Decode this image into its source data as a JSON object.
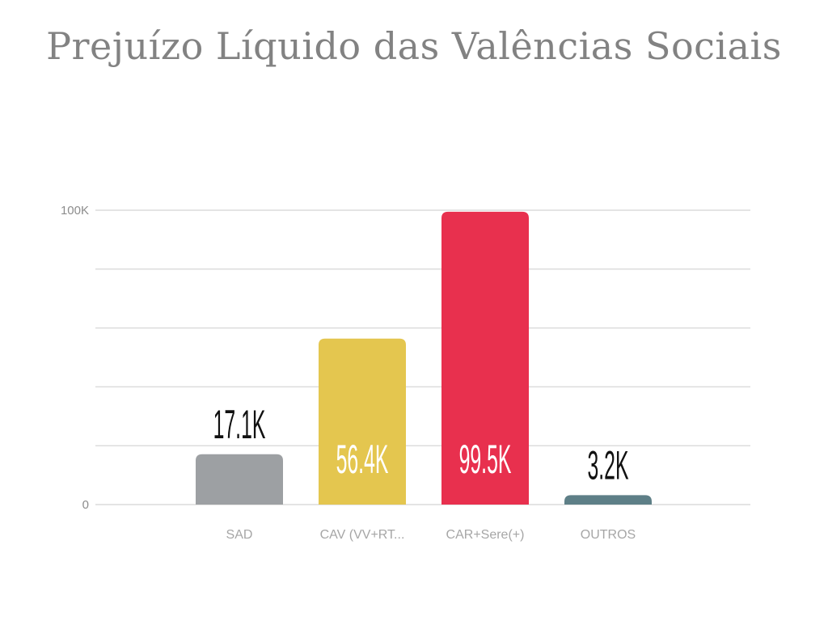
{
  "title": "Prejuízo Líquido das Valências Sociais",
  "chart_data": {
    "type": "bar",
    "title": "Prejuízo Líquido das Valências Sociais",
    "categories": [
      "SAD",
      "CAV (VV+RT...",
      "CAR+Sere(+)",
      "OUTROS"
    ],
    "values": [
      17100,
      56400,
      99500,
      3200
    ],
    "data_labels": [
      "17.1K",
      "56.4K",
      "99.5K",
      "3.2K"
    ],
    "colors": [
      "#9da0a3",
      "#e4c64f",
      "#e8304e",
      "#5e7f87"
    ],
    "label_colors": [
      "#111111",
      "#ffffff",
      "#ffffff",
      "#111111"
    ],
    "label_inside": [
      false,
      true,
      true,
      false
    ],
    "yticks": [
      {
        "value": 0,
        "label": "0"
      },
      {
        "value": 100000,
        "label": "100K"
      }
    ],
    "gridlines": [
      0,
      20000,
      40000,
      60000,
      80000,
      100000
    ],
    "ylim": [
      0,
      100000
    ],
    "xlabel": "",
    "ylabel": "",
    "grid": true,
    "legend": "none"
  }
}
